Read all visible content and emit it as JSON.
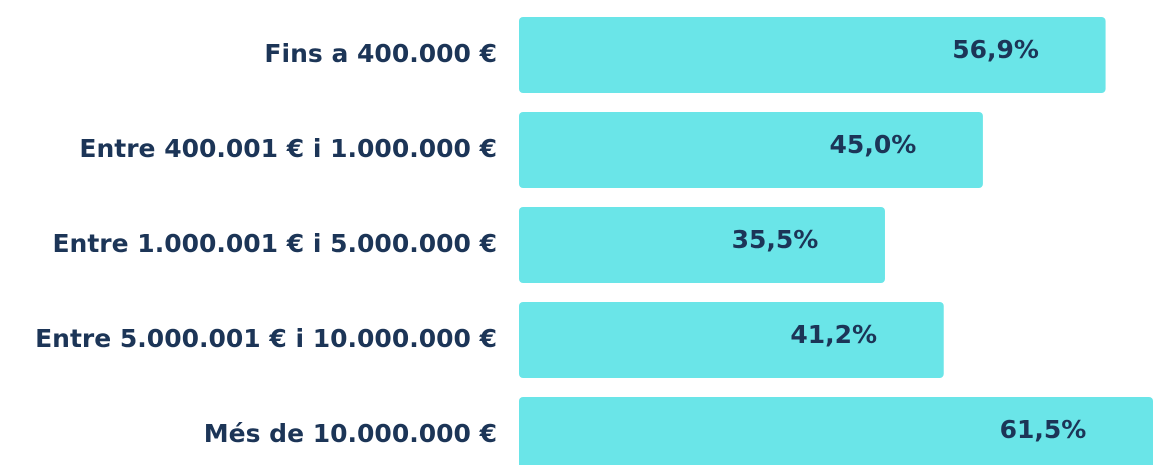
{
  "chart_data": {
    "type": "bar",
    "orientation": "horizontal",
    "categories": [
      "Fins a 400.000 €",
      "Entre 400.001 € i 1.000.000 €",
      "Entre 1.000.001 € i 5.000.000 €",
      "Entre 5.000.001 € i 10.000.000 €",
      "Més de 10.000.000 €"
    ],
    "values": [
      56.9,
      45.0,
      35.5,
      41.2,
      61.5
    ],
    "value_labels": [
      "56,9%",
      "45,0%",
      "35,5%",
      "41,2%",
      "61,5%"
    ],
    "color": "#6ae5e8"
  }
}
